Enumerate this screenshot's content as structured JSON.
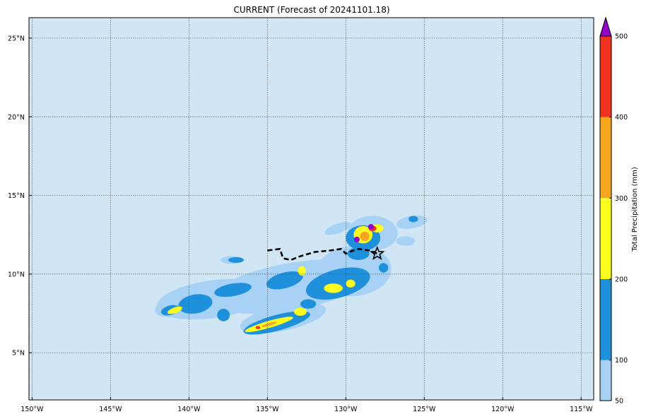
{
  "chart_data": {
    "type": "heatmap",
    "title": "CURRENT (Forecast of 20241101.18)",
    "x_axis": {
      "range": [
        -150.2,
        -114.2
      ],
      "ticks": [
        -150,
        -145,
        -140,
        -135,
        -130,
        -125,
        -120,
        -115
      ],
      "tick_labels": [
        "150°W",
        "145°W",
        "140°W",
        "135°W",
        "130°W",
        "125°W",
        "120°W",
        "115°W"
      ]
    },
    "y_axis": {
      "range": [
        2,
        26.3
      ],
      "ticks": [
        5,
        10,
        15,
        20,
        25
      ],
      "tick_labels": [
        "5°N",
        "10°N",
        "15°N",
        "20°N",
        "25°N"
      ]
    },
    "grid": true,
    "background_color": "#d0e6f5",
    "colorbar": {
      "label": "Total Precipitation (mm)",
      "levels": [
        50,
        100,
        200,
        300,
        400,
        500
      ],
      "level_labels": [
        "50",
        "100",
        "200",
        "300",
        "400",
        "500"
      ],
      "colors": [
        "#a8d2f5",
        "#1e90dc",
        "#ffff1e",
        "#f7a61f",
        "#f0321e"
      ],
      "extend_color": "#9400c8",
      "extend": "max"
    },
    "precipitation_regions": [
      {
        "level": "50-100",
        "color": "#a8d2f5",
        "description": "light swath along 7-13°N from 142°W to 125°W"
      },
      {
        "level": "100-200",
        "color": "#1e90dc",
        "description": "patchy bands 7-13°N, 141°W-127°W"
      },
      {
        "level": "200-300",
        "color": "#ffff1e",
        "description": "cores near 8°N 141°W, 7°N 135°W, 9°N 131°W, 12.5°N 129°W"
      },
      {
        "level": "300-400",
        "color": "#f7a61f",
        "description": "embedded within yellow cores"
      },
      {
        "level": "400-500",
        "color": "#f0321e",
        "description": "small cores near 12.8°N 128.5°W, 6.6°N 135.5°W"
      },
      {
        "level": ">500",
        "color": "#9400c8",
        "description": "peaks near 12.2°N 129.2°W and 13°N 128.3°W"
      }
    ],
    "track": {
      "style": "dashed black line",
      "points": [
        [
          -135,
          11.5
        ],
        [
          -134.2,
          11.6
        ],
        [
          -134,
          11
        ],
        [
          -133.5,
          10.9
        ],
        [
          -133,
          11.1
        ],
        [
          -132,
          11.4
        ],
        [
          -131,
          11.5
        ],
        [
          -130.3,
          11.6
        ],
        [
          -130,
          11.3
        ],
        [
          -129.8,
          11.4
        ],
        [
          -129.2,
          11.6
        ],
        [
          -128.5,
          11.5
        ],
        [
          -128,
          11.3
        ]
      ]
    },
    "current_position": {
      "lon": -128,
      "lat": 11.3,
      "marker": "star"
    }
  }
}
